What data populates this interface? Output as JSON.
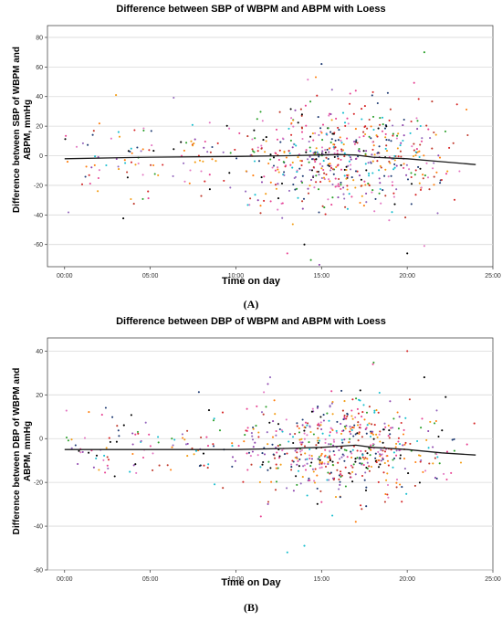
{
  "panels": [
    {
      "label": "(A)",
      "chart_data": {
        "type": "scatter",
        "title": "Difference between SBP of WBPM and ABPM with Loess",
        "xlabel": "Time on day",
        "ylabel": "Difference between SBP of WBPM and ABPM, mmHg",
        "x_tick_labels": [
          "00:00",
          "05:00",
          "10:00",
          "15:00",
          "20:00",
          "25:00"
        ],
        "x_ticks": [
          0,
          5,
          10,
          15,
          20,
          25
        ],
        "y_ticks": [
          -60,
          -40,
          -20,
          0,
          20,
          40,
          60,
          80
        ],
        "xlim": [
          -1,
          25
        ],
        "ylim": [
          -75,
          88
        ],
        "grid": "horizontal",
        "x_span": [
          0,
          24
        ],
        "y_mean": -1,
        "y_sd": 18,
        "cluster_center": 16,
        "loess": {
          "x": [
            0,
            5,
            10,
            13,
            15,
            16,
            17,
            18,
            20,
            22,
            24
          ],
          "y": [
            -2,
            -1,
            -0.5,
            0,
            0.5,
            0.8,
            0.5,
            -1,
            -2,
            -4,
            -6
          ]
        },
        "outliers": [
          [
            21,
            70
          ],
          [
            15,
            62
          ],
          [
            13,
            -66
          ],
          [
            14,
            -60
          ],
          [
            20,
            -66
          ],
          [
            21,
            -61
          ],
          [
            3,
            41
          ],
          [
            17,
            44
          ],
          [
            18,
            43
          ]
        ]
      }
    },
    {
      "label": "(B)",
      "chart_data": {
        "type": "scatter",
        "title": "Difference between DBP of WBPM and ABPM with Loess",
        "xlabel": "Time on Day",
        "ylabel": "Difference between DBP of WBPM and ABPM, mmHg",
        "x_tick_labels": [
          "00:00",
          "05:00",
          "10:00",
          "15:00",
          "20:00",
          "25:00"
        ],
        "x_ticks": [
          0,
          5,
          10,
          15,
          20,
          25
        ],
        "y_ticks": [
          -60,
          -40,
          -20,
          0,
          20,
          40
        ],
        "xlim": [
          -1,
          25
        ],
        "ylim": [
          -60,
          46
        ],
        "grid": "horizontal",
        "x_span": [
          0,
          24
        ],
        "y_mean": -4,
        "y_sd": 11,
        "cluster_center": 16,
        "loess": {
          "x": [
            0,
            5,
            10,
            13,
            15,
            16,
            17,
            18,
            20,
            22,
            24
          ],
          "y": [
            -5,
            -5,
            -5,
            -4.5,
            -4,
            -3.5,
            -3,
            -4,
            -5,
            -6.5,
            -7.5
          ]
        },
        "outliers": [
          [
            20,
            40
          ],
          [
            13,
            -52
          ],
          [
            14,
            -49
          ],
          [
            17,
            -38
          ],
          [
            18,
            34
          ],
          [
            12,
            28
          ],
          [
            21,
            28
          ]
        ]
      }
    }
  ],
  "colors": {
    "points": [
      "#d62728",
      "#e377c2",
      "#1f3b73",
      "#ff7f0e",
      "#2ca02c",
      "#9467bd",
      "#c0392b",
      "#8e44ad",
      "#f39c12",
      "#17becf",
      "#e84393",
      "#000000"
    ],
    "loess": "#1a1a1a",
    "grid": "#d9d9d9",
    "axis": "#333333"
  }
}
